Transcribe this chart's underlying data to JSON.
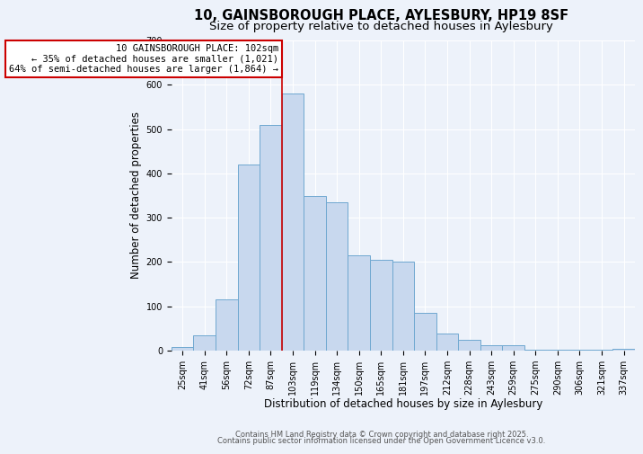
{
  "title1": "10, GAINSBOROUGH PLACE, AYLESBURY, HP19 8SF",
  "title2": "Size of property relative to detached houses in Aylesbury",
  "xlabel": "Distribution of detached houses by size in Aylesbury",
  "ylabel": "Number of detached properties",
  "bar_labels": [
    "25sqm",
    "41sqm",
    "56sqm",
    "72sqm",
    "87sqm",
    "103sqm",
    "119sqm",
    "134sqm",
    "150sqm",
    "165sqm",
    "181sqm",
    "197sqm",
    "212sqm",
    "228sqm",
    "243sqm",
    "259sqm",
    "275sqm",
    "290sqm",
    "306sqm",
    "321sqm",
    "337sqm"
  ],
  "bar_values": [
    8,
    35,
    115,
    420,
    510,
    580,
    350,
    335,
    215,
    205,
    200,
    85,
    38,
    25,
    13,
    13,
    2,
    2,
    2,
    2,
    5
  ],
  "bar_color": "#c8d8ee",
  "bar_edge_color": "#6fa8d0",
  "bar_edge_width": 0.7,
  "red_line_index": 5,
  "annotation_line1": "10 GAINSBOROUGH PLACE: 102sqm",
  "annotation_line2": "← 35% of detached houses are smaller (1,021)",
  "annotation_line3": "64% of semi-detached houses are larger (1,864) →",
  "annotation_box_facecolor": "#ffffff",
  "annotation_box_edgecolor": "#cc0000",
  "ylim": [
    0,
    700
  ],
  "yticks": [
    0,
    100,
    200,
    300,
    400,
    500,
    600,
    700
  ],
  "bg_color": "#edf2fa",
  "plot_bg_color": "#edf2fa",
  "grid_color": "#ffffff",
  "title_fontsize": 10.5,
  "subtitle_fontsize": 9.5,
  "xlabel_fontsize": 8.5,
  "ylabel_fontsize": 8.5,
  "tick_fontsize": 7,
  "annot_fontsize": 7.5,
  "footer1": "Contains HM Land Registry data © Crown copyright and database right 2025.",
  "footer2": "Contains public sector information licensed under the Open Government Licence v3.0.",
  "footer_fontsize": 6
}
